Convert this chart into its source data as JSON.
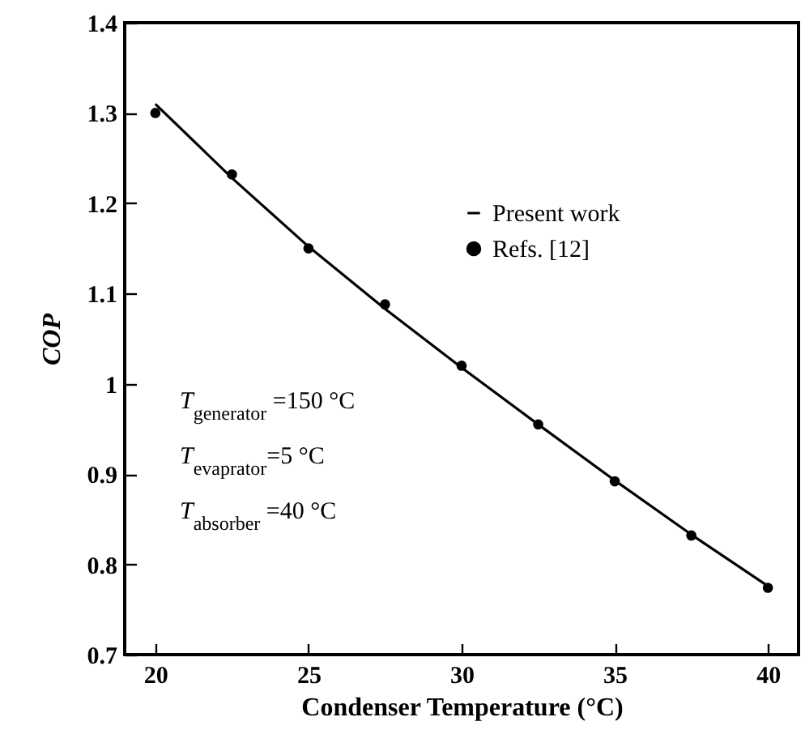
{
  "chart_data": {
    "type": "line",
    "xlabel": "Condenser Temperature (°C)",
    "ylabel": "COP",
    "xlim": [
      19,
      41
    ],
    "xticks": [
      20,
      25,
      30,
      35,
      40
    ],
    "ylim": [
      0.7,
      1.4
    ],
    "yticks": [
      0.7,
      0.8,
      0.9,
      1,
      1.1,
      1.2,
      1.3,
      1.4
    ],
    "grid": false,
    "legend": "top right",
    "series": [
      {
        "name": "Present work",
        "color": "#000000",
        "x": [
          20,
          22.5,
          25,
          27.5,
          30,
          32.5,
          35,
          37.5,
          40
        ],
        "values": [
          1.31,
          1.228,
          1.152,
          1.083,
          1.018,
          0.955,
          0.893,
          0.833,
          0.776
        ]
      },
      {
        "name": "Refs. [12]",
        "type": "scatter",
        "marker": "circle",
        "color": "#000000",
        "x": [
          20,
          22.5,
          25,
          27.5,
          30,
          32.5,
          35,
          37.5,
          40
        ],
        "values": [
          1.3,
          1.232,
          1.15,
          1.088,
          1.02,
          0.955,
          0.892,
          0.832,
          0.774
        ]
      }
    ],
    "annotations": [
      "T$_{generator}$ =150 °C",
      "T$_{evaprator}$=5 °C",
      "T$_{absorber}$ =40 °C"
    ]
  }
}
